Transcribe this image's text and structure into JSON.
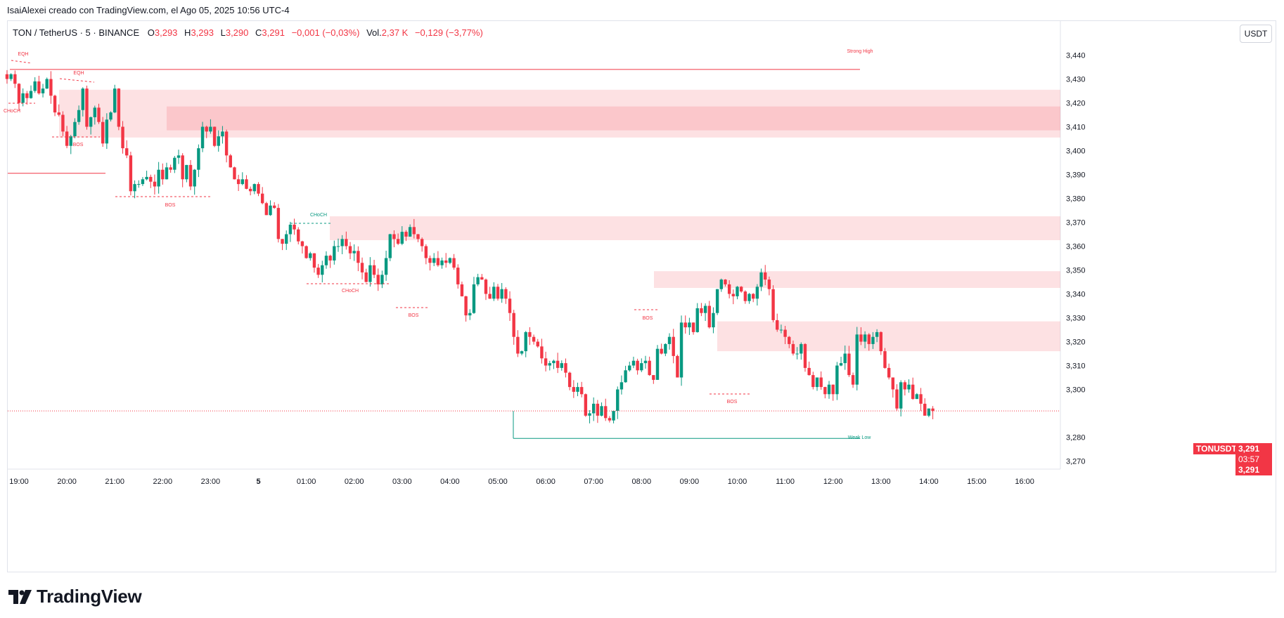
{
  "caption": "IsaiAlexei creado con TradingView.com, el Ago 05, 2025 10:56 UTC-4",
  "legend": {
    "symbol": "TON / TetherUS · 5 · BINANCE",
    "o_label": "O",
    "o": "3,293",
    "h_label": "H",
    "h": "3,293",
    "l_label": "L",
    "l": "3,290",
    "c_label": "C",
    "c": "3,291",
    "change": "−0,001 (−0,03%)",
    "vol_label": "Vol.",
    "vol": "2,37 K",
    "vol_change": "−0,129 (−3,77%)"
  },
  "currency_button": "USDT",
  "brand": "TradingView",
  "price_tags": {
    "symbol": "TONUSDT",
    "price": "3,291",
    "countdown": "03:57",
    "price2": "3,291"
  },
  "colors": {
    "up": "#089981",
    "down": "#f23645",
    "zone": "#f23645",
    "text": "#131722",
    "grid_text": "#131722"
  },
  "chart_data": {
    "type": "candlestick",
    "y_ticks": [
      3.44,
      3.43,
      3.42,
      3.41,
      3.4,
      3.39,
      3.38,
      3.37,
      3.36,
      3.35,
      3.34,
      3.33,
      3.32,
      3.31,
      3.3,
      3.28,
      3.27
    ],
    "y_tick_labels": [
      "3,440",
      "3,430",
      "3,420",
      "3,410",
      "3,400",
      "3,390",
      "3,380",
      "3,370",
      "3,360",
      "3,350",
      "3,340",
      "3,330",
      "3,320",
      "3,310",
      "3,300",
      "3,280",
      "3,270"
    ],
    "ylim": [
      3.265,
      3.447
    ],
    "x_labels": [
      "19:00",
      "20:00",
      "21:00",
      "22:00",
      "23:00",
      "5",
      "01:00",
      "02:00",
      "03:00",
      "04:00",
      "05:00",
      "06:00",
      "07:00",
      "08:00",
      "09:00",
      "10:00",
      "11:00",
      "12:00",
      "13:00",
      "14:00",
      "15:00",
      "16:00"
    ],
    "x_label_hours": [
      19,
      20,
      21,
      22,
      23,
      24,
      25,
      26,
      27,
      28,
      29,
      30,
      31,
      32,
      33,
      34,
      35,
      36,
      37,
      38,
      39,
      40
    ],
    "xlim_hours": [
      18.72,
      41.65
    ],
    "candle_interval_minutes": 5,
    "start_hour": 18.75,
    "closes": [
      3.43,
      3.432,
      3.428,
      3.42,
      3.424,
      3.422,
      3.425,
      3.429,
      3.424,
      3.426,
      3.43,
      3.423,
      3.416,
      3.415,
      3.408,
      3.402,
      3.406,
      3.412,
      3.417,
      3.426,
      3.41,
      3.414,
      3.418,
      3.412,
      3.403,
      3.413,
      3.416,
      3.426,
      3.41,
      3.401,
      3.398,
      3.383,
      3.386,
      3.386,
      3.388,
      3.389,
      3.387,
      3.385,
      3.392,
      3.388,
      3.393,
      3.392,
      3.397,
      3.398,
      3.388,
      3.394,
      3.385,
      3.392,
      3.401,
      3.41,
      3.408,
      3.41,
      3.402,
      3.406,
      3.408,
      3.398,
      3.393,
      3.388,
      3.386,
      3.388,
      3.384,
      3.383,
      3.386,
      3.382,
      3.378,
      3.373,
      3.377,
      3.376,
      3.363,
      3.361,
      3.365,
      3.369,
      3.367,
      3.362,
      3.36,
      3.355,
      3.357,
      3.351,
      3.348,
      3.352,
      3.356,
      3.354,
      3.36,
      3.36,
      3.363,
      3.36,
      3.357,
      3.358,
      3.353,
      3.349,
      3.345,
      3.352,
      3.348,
      3.344,
      3.348,
      3.355,
      3.365,
      3.363,
      3.361,
      3.366,
      3.364,
      3.368,
      3.365,
      3.363,
      3.36,
      3.355,
      3.353,
      3.355,
      3.352,
      3.354,
      3.353,
      3.355,
      3.351,
      3.344,
      3.339,
      3.331,
      3.332,
      3.344,
      3.347,
      3.346,
      3.34,
      3.338,
      3.343,
      3.338,
      3.342,
      3.338,
      3.332,
      3.322,
      3.315,
      3.316,
      3.324,
      3.322,
      3.32,
      3.318,
      3.313,
      3.31,
      3.311,
      3.312,
      3.309,
      3.311,
      3.307,
      3.301,
      3.299,
      3.301,
      3.298,
      3.289,
      3.29,
      3.294,
      3.289,
      3.293,
      3.288,
      3.287,
      3.291,
      3.3,
      3.303,
      3.308,
      3.31,
      3.312,
      3.308,
      3.311,
      3.312,
      3.306,
      3.304,
      3.317,
      3.315,
      3.319,
      3.322,
      3.314,
      3.305,
      3.328,
      3.326,
      3.328,
      3.324,
      3.334,
      3.332,
      3.335,
      3.326,
      3.332,
      3.342,
      3.346,
      3.344,
      3.34,
      3.339,
      3.343,
      3.341,
      3.337,
      3.34,
      3.338,
      3.343,
      3.349,
      3.346,
      3.342,
      3.329,
      3.325,
      3.325,
      3.322,
      3.319,
      3.315,
      3.315,
      3.319,
      3.309,
      3.306,
      3.301,
      3.305,
      3.301,
      3.298,
      3.302,
      3.298,
      3.31,
      3.311,
      3.315,
      3.306,
      3.302,
      3.323,
      3.32,
      3.323,
      3.319,
      3.322,
      3.324,
      3.316,
      3.309,
      3.305,
      3.3,
      3.292,
      3.303,
      3.3,
      3.302,
      3.296,
      3.298,
      3.294,
      3.289,
      3.292,
      3.291
    ],
    "annotations": [
      {
        "text": "EQH",
        "kind": "label"
      },
      {
        "text": "EQH",
        "kind": "label"
      },
      {
        "text": "Strong High",
        "kind": "label"
      },
      {
        "text": "CHoCH",
        "kind": "label"
      },
      {
        "text": "BOS",
        "kind": "label"
      },
      {
        "text": "BOS",
        "kind": "label"
      },
      {
        "text": "CHoCH",
        "kind": "label"
      },
      {
        "text": "CHoCH",
        "kind": "label"
      },
      {
        "text": "BOS",
        "kind": "label"
      },
      {
        "text": "BOS",
        "kind": "label"
      },
      {
        "text": "BOS",
        "kind": "label"
      },
      {
        "text": "Weak Low",
        "kind": "label"
      }
    ],
    "levels": [
      {
        "name": "strong-high",
        "price": 3.434,
        "color": "#f23645"
      },
      {
        "name": "weak-low",
        "price": 3.2795,
        "color": "#089981"
      },
      {
        "name": "pre-level",
        "price": 3.3905,
        "color": "#f23645"
      },
      {
        "name": "last-price",
        "price": 3.291,
        "color": "#f23645"
      }
    ],
    "zones": [
      {
        "top": 3.4255,
        "bottom": 3.4055
      },
      {
        "top": 3.4185,
        "bottom": 3.4085
      },
      {
        "top": 3.3725,
        "bottom": 3.3625
      },
      {
        "top": 3.3495,
        "bottom": 3.3425
      },
      {
        "top": 3.3285,
        "bottom": 3.316
      }
    ],
    "grid": false,
    "legend_position": "top-left"
  }
}
